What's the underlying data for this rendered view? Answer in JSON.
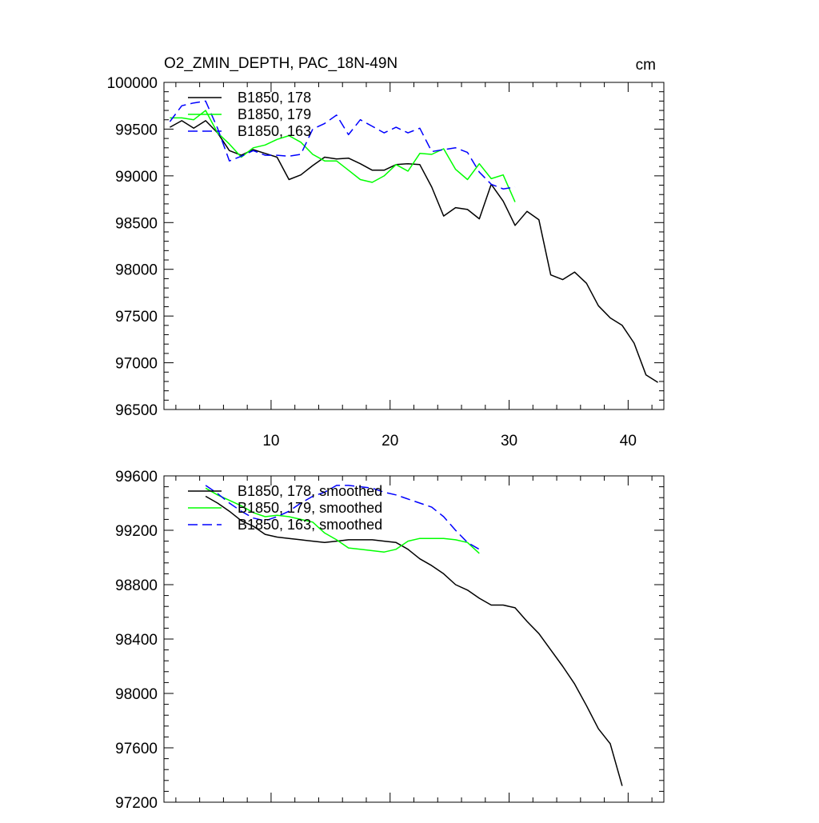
{
  "chart_data": [
    {
      "type": "line",
      "title": "O2_ZMIN_DEPTH, PAC_18N-49N",
      "units": "cm",
      "xlim": [
        1,
        43
      ],
      "ylim": [
        96500,
        100000
      ],
      "xticks": [
        10,
        20,
        30,
        40
      ],
      "yticks": [
        96500,
        97000,
        97500,
        98000,
        98500,
        99000,
        99500,
        100000
      ],
      "grid": false,
      "legend_position": "top-left",
      "series": [
        {
          "name": "B1850, 178",
          "color": "#000000",
          "dash": "solid",
          "x": [
            1.5,
            2.5,
            3.5,
            4.5,
            5.5,
            6.5,
            7.5,
            8.5,
            9.5,
            10.5,
            11.5,
            12.5,
            13.5,
            14.5,
            15.5,
            16.5,
            17.5,
            18.5,
            19.5,
            20.5,
            21.5,
            22.5,
            23.5,
            24.5,
            25.5,
            26.5,
            27.5,
            28.5,
            29.5,
            30.5,
            31.5,
            32.5,
            33.5,
            34.5,
            35.5,
            36.5,
            37.5,
            38.5,
            39.5,
            40.5,
            41.5,
            42.5
          ],
          "y": [
            99520,
            99590,
            99510,
            99590,
            99460,
            99270,
            99220,
            99280,
            99240,
            99200,
            98960,
            99010,
            99110,
            99200,
            99180,
            99190,
            99130,
            99060,
            99060,
            99120,
            99130,
            99120,
            98880,
            98570,
            98660,
            98640,
            98540,
            98910,
            98730,
            98470,
            98620,
            98530,
            97940,
            97890,
            97970,
            97850,
            97610,
            97480,
            97400,
            97210,
            96870,
            96790
          ]
        },
        {
          "name": "B1850, 179",
          "color": "#00ff00",
          "dash": "solid",
          "x": [
            1.5,
            2.5,
            3.5,
            4.5,
            5.5,
            6.5,
            7.5,
            8.5,
            9.5,
            10.5,
            11.5,
            12.5,
            13.5,
            14.5,
            15.5,
            16.5,
            17.5,
            18.5,
            19.5,
            20.5,
            21.5,
            22.5,
            23.5,
            24.5,
            25.5,
            26.5,
            27.5,
            28.5,
            29.5,
            30.5
          ],
          "y": [
            99620,
            99620,
            99600,
            99700,
            99460,
            99340,
            99200,
            99300,
            99330,
            99390,
            99430,
            99360,
            99230,
            99160,
            99160,
            99060,
            98960,
            98930,
            99000,
            99120,
            99050,
            99240,
            99230,
            99290,
            99070,
            98960,
            99130,
            98970,
            99010,
            98720
          ]
        },
        {
          "name": "B1850, 163",
          "color": "#0000ff",
          "dash": "dashed",
          "x": [
            1.5,
            2.5,
            3.5,
            4.5,
            5.5,
            6.5,
            7.5,
            8.5,
            9.5,
            10.5,
            11.5,
            12.5,
            13.5,
            14.5,
            15.5,
            16.5,
            17.5,
            18.5,
            19.5,
            20.5,
            21.5,
            22.5,
            23.5,
            24.5,
            25.5,
            26.5,
            27.5,
            28.5,
            29.5,
            30.5
          ],
          "y": [
            99580,
            99750,
            99780,
            99800,
            99510,
            99160,
            99210,
            99270,
            99220,
            99220,
            99210,
            99230,
            99500,
            99560,
            99650,
            99440,
            99600,
            99530,
            99460,
            99520,
            99460,
            99510,
            99260,
            99280,
            99300,
            99250,
            99040,
            98910,
            98860,
            98880
          ]
        }
      ]
    },
    {
      "type": "line",
      "title": "",
      "xlim": [
        1,
        43
      ],
      "ylim": [
        97200,
        99600
      ],
      "xticks": [
        10,
        20,
        30,
        40
      ],
      "yticks": [
        97200,
        97600,
        98000,
        98400,
        98800,
        99200,
        99600
      ],
      "grid": false,
      "legend_position": "top-left",
      "series": [
        {
          "name": "B1850, 178, smoothed",
          "color": "#000000",
          "dash": "solid",
          "x": [
            4.5,
            5.5,
            6.5,
            7.5,
            8.5,
            9.5,
            10.5,
            11.5,
            12.5,
            13.5,
            14.5,
            15.5,
            16.5,
            17.5,
            18.5,
            19.5,
            20.5,
            21.5,
            22.5,
            23.5,
            24.5,
            25.5,
            26.5,
            27.5,
            28.5,
            29.5,
            30.5,
            31.5,
            32.5,
            33.5,
            34.5,
            35.5,
            36.5,
            37.5,
            38.5,
            39.5
          ],
          "y": [
            99450,
            99400,
            99340,
            99270,
            99230,
            99170,
            99150,
            99140,
            99130,
            99120,
            99110,
            99120,
            99130,
            99130,
            99130,
            99120,
            99110,
            99060,
            98990,
            98940,
            98880,
            98800,
            98760,
            98700,
            98650,
            98650,
            98630,
            98530,
            98440,
            98320,
            98200,
            98070,
            97910,
            97740,
            97630,
            97320
          ]
        },
        {
          "name": "B1850, 179, smoothed",
          "color": "#00ff00",
          "dash": "solid",
          "x": [
            4.5,
            5.5,
            6.5,
            7.5,
            8.5,
            9.5,
            10.5,
            11.5,
            12.5,
            13.5,
            14.5,
            15.5,
            16.5,
            17.5,
            18.5,
            19.5,
            20.5,
            21.5,
            22.5,
            23.5,
            24.5,
            25.5,
            26.5,
            27.5
          ],
          "y": [
            99510,
            99460,
            99420,
            99380,
            99330,
            99300,
            99310,
            99300,
            99280,
            99260,
            99180,
            99130,
            99070,
            99060,
            99050,
            99040,
            99060,
            99120,
            99140,
            99140,
            99140,
            99130,
            99110,
            99030
          ]
        },
        {
          "name": "B1850, 163, smoothed",
          "color": "#0000ff",
          "dash": "dashed",
          "x": [
            4.5,
            5.5,
            6.5,
            7.5,
            8.5,
            9.5,
            10.5,
            11.5,
            12.5,
            13.5,
            14.5,
            15.5,
            16.5,
            17.5,
            18.5,
            19.5,
            20.5,
            21.5,
            22.5,
            23.5,
            24.5,
            25.5,
            26.5,
            27.5
          ],
          "y": [
            99530,
            99470,
            99400,
            99340,
            99290,
            99270,
            99300,
            99340,
            99400,
            99450,
            99480,
            99530,
            99530,
            99520,
            99510,
            99480,
            99460,
            99430,
            99400,
            99370,
            99300,
            99200,
            99110,
            99060
          ]
        }
      ]
    }
  ]
}
